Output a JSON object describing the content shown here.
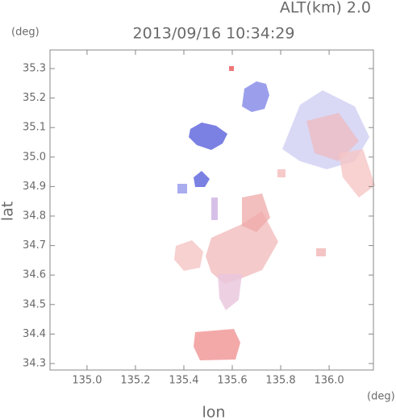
{
  "chart_data": {
    "type": "map",
    "title": "2013/09/16 10:34:29",
    "annotation": "ALT(km) 2.0",
    "y_unit": "(deg)",
    "x_unit": "(deg)",
    "xlabel": "lon",
    "ylabel": "lat",
    "xlim": [
      134.847,
      136.183
    ],
    "ylim": [
      34.278,
      35.363
    ],
    "xticks": [
      {
        "value": 135,
        "label": "135.0"
      },
      135.2,
      135.4,
      135.6,
      135.8,
      {
        "value": 136,
        "label": "136.0"
      }
    ],
    "yticks": [
      34.3,
      34.4,
      34.5,
      34.6,
      34.7,
      34.8,
      34.9,
      {
        "value": 35,
        "label": "35.0"
      },
      35.1,
      35.2,
      35.3
    ]
  }
}
